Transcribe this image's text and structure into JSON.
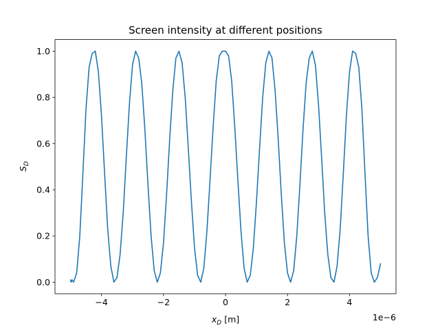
{
  "chart_data": {
    "type": "line",
    "title": "Screen intensity at different positions",
    "xlabel_main": "x",
    "xlabel_sub": "D",
    "xlabel_unit": " [m]",
    "ylabel_main": "S",
    "ylabel_sub": "D",
    "x_offset_label": "1e−6",
    "x_scale_factor": 1e-06,
    "xlim": [
      -5.5e-06,
      5.5e-06
    ],
    "ylim": [
      -0.05,
      1.05
    ],
    "x_ticks": [
      {
        "value": -4e-06,
        "label": "−4"
      },
      {
        "value": -2e-06,
        "label": "−2"
      },
      {
        "value": 0,
        "label": "0"
      },
      {
        "value": 2e-06,
        "label": "2"
      },
      {
        "value": 4e-06,
        "label": "4"
      }
    ],
    "y_ticks": [
      {
        "value": 0.0,
        "label": "0.0"
      },
      {
        "value": 0.2,
        "label": "0.2"
      },
      {
        "value": 0.4,
        "label": "0.4"
      },
      {
        "value": 0.6,
        "label": "0.6"
      },
      {
        "value": 0.8,
        "label": "0.8"
      },
      {
        "value": 1.0,
        "label": "1.0"
      }
    ],
    "grid": false,
    "line_color": "#1f77b4",
    "series": [
      {
        "x": [
          -5e-06,
          -4.98e-06,
          -4.95e-06,
          -4.9e-06,
          -4.8e-06,
          -4.7e-06,
          -4.6e-06,
          -4.5e-06,
          -4.4e-06,
          -4.3e-06,
          -4.2e-06,
          -4.1e-06,
          -4e-06,
          -3.9e-06,
          -3.8e-06,
          -3.7e-06,
          -3.6e-06,
          -3.5e-06,
          -3.4e-06,
          -3.3e-06,
          -3.2e-06,
          -3.1e-06,
          -3e-06,
          -2.9e-06,
          -2.8e-06,
          -2.7e-06,
          -2.6e-06,
          -2.5e-06,
          -2.4e-06,
          -2.3e-06,
          -2.2e-06,
          -2.1e-06,
          -2e-06,
          -1.9e-06,
          -1.8e-06,
          -1.7e-06,
          -1.6e-06,
          -1.5e-06,
          -1.4e-06,
          -1.3e-06,
          -1.2e-06,
          -1.1e-06,
          -1e-06,
          -9e-07,
          -8e-07,
          -7e-07,
          -6e-07,
          -5e-07,
          -4e-07,
          -3e-07,
          -2e-07,
          -1e-07,
          0,
          1e-07,
          2e-07,
          3e-07,
          4e-07,
          5e-07,
          6e-07,
          7e-07,
          8e-07,
          9e-07,
          1e-06,
          1.1e-06,
          1.2e-06,
          1.3e-06,
          1.4e-06,
          1.5e-06,
          1.6e-06,
          1.7e-06,
          1.8e-06,
          1.9e-06,
          2e-06,
          2.1e-06,
          2.2e-06,
          2.3e-06,
          2.4e-06,
          2.5e-06,
          2.6e-06,
          2.7e-06,
          2.8e-06,
          2.9e-06,
          3e-06,
          3.1e-06,
          3.2e-06,
          3.3e-06,
          3.4e-06,
          3.5e-06,
          3.6e-06,
          3.7e-06,
          3.8e-06,
          3.9e-06,
          4e-06,
          4.1e-06,
          4.2e-06,
          4.3e-06,
          4.4e-06,
          4.5e-06,
          4.6e-06,
          4.7e-06,
          4.8e-06,
          4.9e-06,
          5e-06
        ],
        "y": [
          0.01,
          0.0,
          0.01,
          0.0,
          0.04,
          0.2,
          0.47,
          0.75,
          0.93,
          0.99,
          1.0,
          0.91,
          0.72,
          0.47,
          0.23,
          0.07,
          0.0,
          0.02,
          0.12,
          0.3,
          0.54,
          0.77,
          0.94,
          1.0,
          0.97,
          0.86,
          0.66,
          0.42,
          0.2,
          0.05,
          0.0,
          0.04,
          0.17,
          0.38,
          0.62,
          0.83,
          0.97,
          1.0,
          0.95,
          0.8,
          0.58,
          0.35,
          0.15,
          0.03,
          0.0,
          0.06,
          0.22,
          0.44,
          0.67,
          0.87,
          0.98,
          1.0,
          1.0,
          0.98,
          0.87,
          0.67,
          0.44,
          0.22,
          0.06,
          0.0,
          0.03,
          0.15,
          0.35,
          0.58,
          0.8,
          0.95,
          1.0,
          0.97,
          0.83,
          0.62,
          0.38,
          0.17,
          0.04,
          0.0,
          0.05,
          0.2,
          0.42,
          0.66,
          0.86,
          0.97,
          1.0,
          0.94,
          0.77,
          0.54,
          0.3,
          0.12,
          0.02,
          0.0,
          0.07,
          0.23,
          0.47,
          0.72,
          0.91,
          1.0,
          0.99,
          0.93,
          0.75,
          0.47,
          0.2,
          0.04,
          0.0,
          0.02,
          0.08
        ]
      }
    ]
  }
}
